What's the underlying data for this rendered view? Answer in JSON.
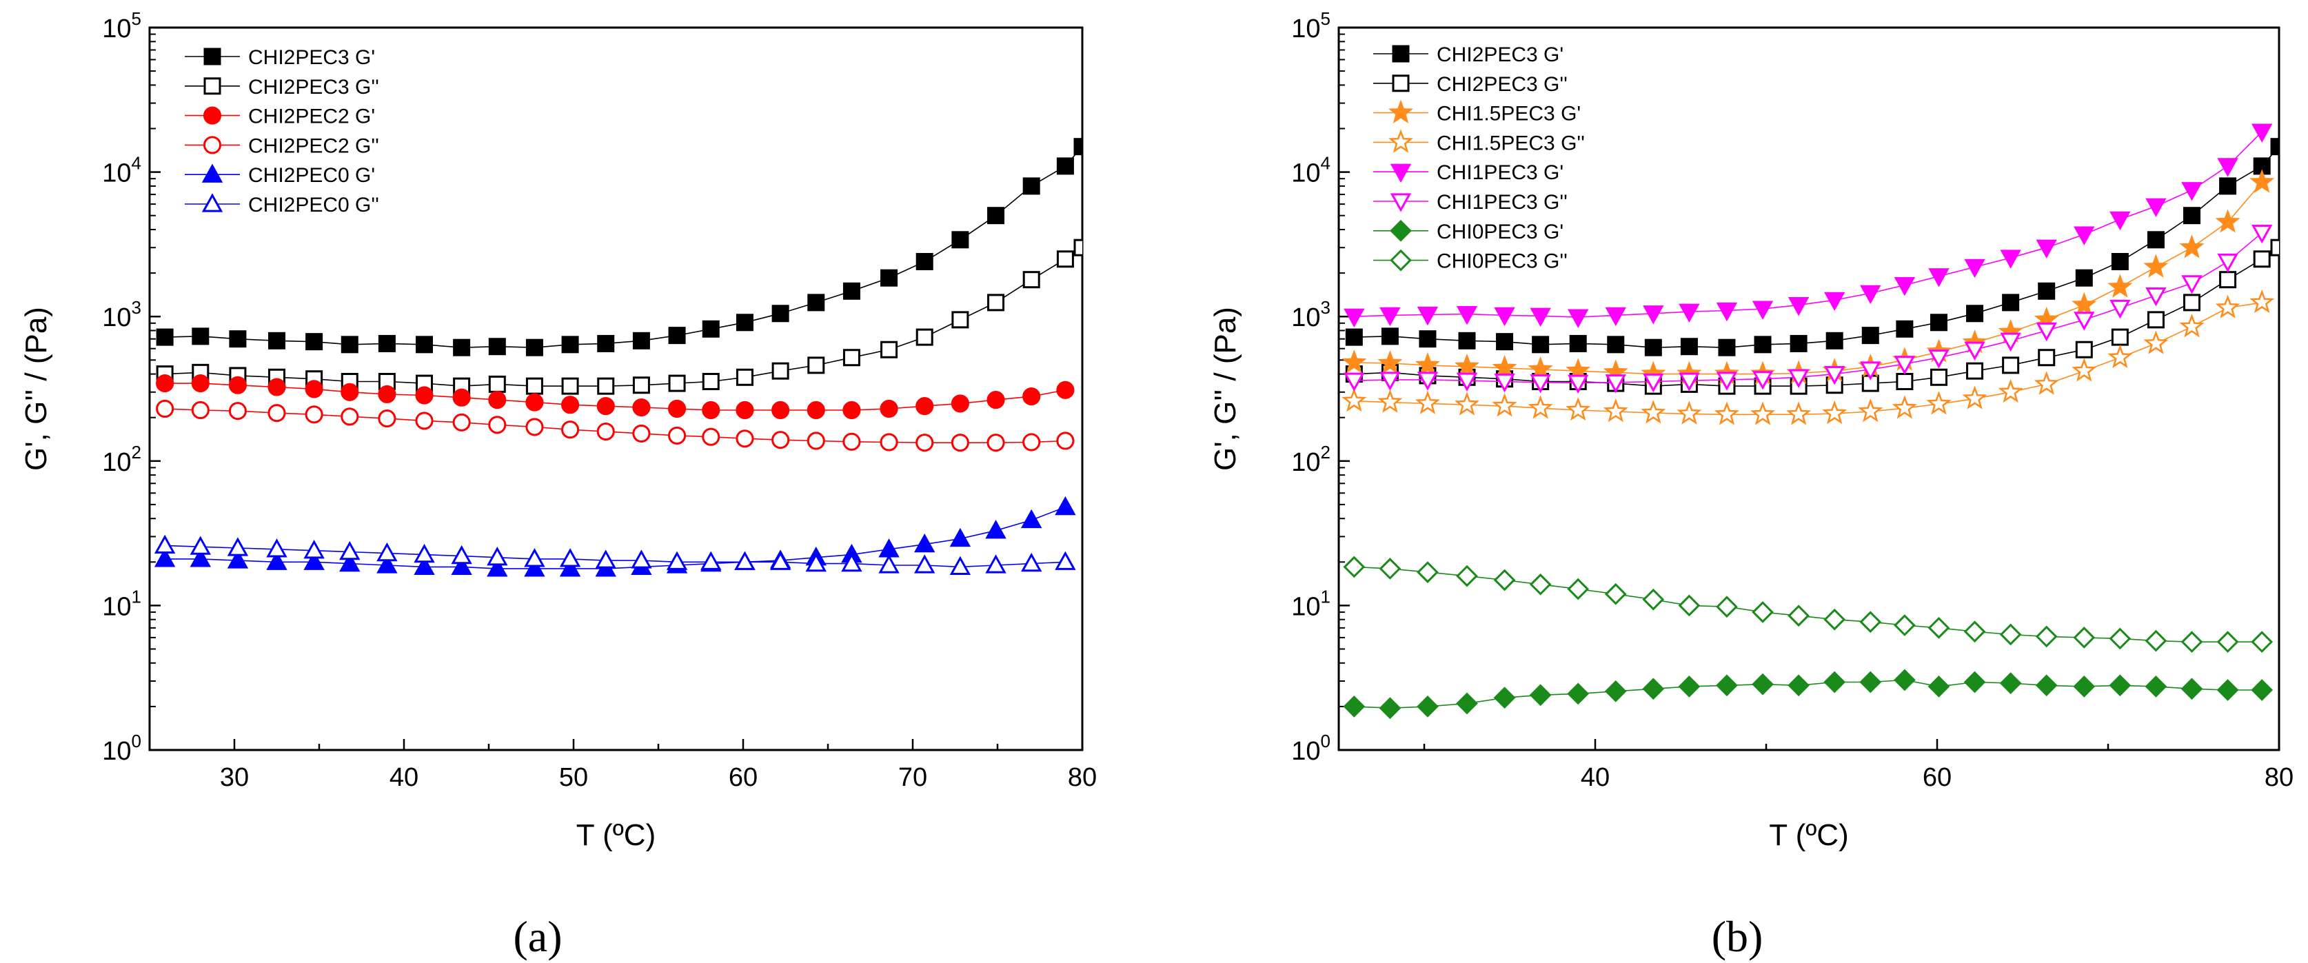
{
  "chart_data": [
    {
      "type": "scatter",
      "panel_label": "(a)",
      "xlabel": "T (ºC)",
      "ylabel": "G', G'' / (Pa)",
      "xlim": [
        25,
        80
      ],
      "ylim": [
        1,
        100000
      ],
      "yscale": "log",
      "x_ticks": [
        30,
        40,
        50,
        60,
        70,
        80
      ],
      "y_ticks": [
        "10^0",
        "10^1",
        "10^2",
        "10^3",
        "10^4",
        "10^5"
      ],
      "legend_position": "top-left",
      "grid": false,
      "series": [
        {
          "name": "CHI2PEC3 G'",
          "color": "#000000",
          "marker": "square",
          "filled": true,
          "x": [
            25.9,
            28,
            30.2,
            32.5,
            34.7,
            36.8,
            39,
            41.2,
            43.4,
            45.5,
            47.7,
            49.8,
            51.9,
            54,
            56.1,
            58.1,
            60.1,
            62.2,
            64.3,
            66.4,
            68.6,
            70.7,
            72.8,
            74.9,
            77,
            79,
            80
          ],
          "y": [
            720,
            730,
            700,
            680,
            670,
            640,
            650,
            640,
            610,
            620,
            610,
            640,
            650,
            680,
            740,
            820,
            910,
            1050,
            1250,
            1500,
            1850,
            2400,
            3400,
            5000,
            8000,
            11000,
            15000
          ]
        },
        {
          "name": "CHI2PEC3 G''",
          "color": "#000000",
          "marker": "square",
          "filled": false,
          "x": [
            25.9,
            28,
            30.2,
            32.5,
            34.7,
            36.8,
            39,
            41.2,
            43.4,
            45.5,
            47.7,
            49.8,
            51.9,
            54,
            56.1,
            58.1,
            60.1,
            62.2,
            64.3,
            66.4,
            68.6,
            70.7,
            72.8,
            74.9,
            77,
            79,
            80
          ],
          "y": [
            400,
            410,
            390,
            380,
            370,
            355,
            355,
            345,
            330,
            340,
            330,
            330,
            330,
            335,
            345,
            355,
            380,
            420,
            460,
            520,
            590,
            720,
            950,
            1250,
            1800,
            2500,
            3000
          ]
        },
        {
          "name": "CHI2PEC2 G'",
          "color": "#ff0000",
          "marker": "circle",
          "filled": true,
          "x": [
            25.9,
            28,
            30.2,
            32.5,
            34.7,
            36.8,
            39,
            41.2,
            43.4,
            45.5,
            47.7,
            49.8,
            51.9,
            54,
            56.1,
            58.1,
            60.1,
            62.2,
            64.3,
            66.4,
            68.6,
            70.7,
            72.8,
            74.9,
            77,
            79
          ],
          "y": [
            345,
            345,
            335,
            325,
            315,
            300,
            290,
            285,
            275,
            265,
            255,
            245,
            240,
            235,
            230,
            225,
            225,
            225,
            225,
            225,
            230,
            240,
            250,
            265,
            280,
            310
          ]
        },
        {
          "name": "CHI2PEC2 G''",
          "color": "#ff0000",
          "marker": "circle",
          "filled": false,
          "x": [
            25.9,
            28,
            30.2,
            32.5,
            34.7,
            36.8,
            39,
            41.2,
            43.4,
            45.5,
            47.7,
            49.8,
            51.9,
            54,
            56.1,
            58.1,
            60.1,
            62.2,
            64.3,
            66.4,
            68.6,
            70.7,
            72.8,
            74.9,
            77,
            79
          ],
          "y": [
            230,
            225,
            222,
            215,
            210,
            203,
            197,
            190,
            185,
            178,
            172,
            165,
            160,
            155,
            150,
            147,
            143,
            140,
            138,
            136,
            135,
            134,
            134,
            134,
            135,
            138
          ]
        },
        {
          "name": "CHI2PEC0 G'",
          "color": "#0000ff",
          "marker": "triangle-up",
          "filled": true,
          "x": [
            25.9,
            28,
            30.2,
            32.5,
            34.7,
            36.8,
            39,
            41.2,
            43.4,
            45.5,
            47.7,
            49.8,
            51.9,
            54,
            56.1,
            58.1,
            60.1,
            62.2,
            64.3,
            66.4,
            68.6,
            70.7,
            72.8,
            74.9,
            77,
            79
          ],
          "y": [
            21,
            21,
            20.5,
            20,
            20,
            19.5,
            19,
            18.5,
            18.5,
            18,
            18,
            18,
            18,
            18.5,
            19,
            19.5,
            20,
            20.5,
            21.5,
            22.5,
            24.5,
            26.5,
            29,
            33,
            39,
            48
          ]
        },
        {
          "name": "CHI2PEC0 G''",
          "color": "#0000ff",
          "marker": "triangle-up",
          "filled": false,
          "x": [
            25.9,
            28,
            30.2,
            32.5,
            34.7,
            36.8,
            39,
            41.2,
            43.4,
            45.5,
            47.7,
            49.8,
            51.9,
            54,
            56.1,
            58.1,
            60.1,
            62.2,
            64.3,
            66.4,
            68.6,
            70.7,
            72.8,
            74.9,
            77,
            79
          ],
          "y": [
            26,
            25.5,
            25,
            24.5,
            24,
            23.5,
            23,
            22.5,
            22,
            21.5,
            21,
            21,
            20.5,
            20.5,
            20,
            20,
            20,
            20,
            19.5,
            19.5,
            19,
            19,
            18.5,
            19,
            19.5,
            20
          ]
        }
      ]
    },
    {
      "type": "scatter",
      "panel_label": "(b)",
      "xlabel": "T (ºC)",
      "ylabel": "G', G'' / (Pa)",
      "xlim": [
        25,
        80
      ],
      "ylim": [
        1,
        100000
      ],
      "yscale": "log",
      "x_ticks": [
        40,
        60,
        80
      ],
      "y_ticks": [
        "10^0",
        "10^1",
        "10^2",
        "10^3",
        "10^4",
        "10^5"
      ],
      "legend_position": "top-left",
      "grid": false,
      "series": [
        {
          "name": "CHI2PEC3 G'",
          "color": "#000000",
          "marker": "square",
          "filled": true,
          "x": [
            25.9,
            28,
            30.2,
            32.5,
            34.7,
            36.8,
            39,
            41.2,
            43.4,
            45.5,
            47.7,
            49.8,
            51.9,
            54,
            56.1,
            58.1,
            60.1,
            62.2,
            64.3,
            66.4,
            68.6,
            70.7,
            72.8,
            74.9,
            77,
            79,
            80
          ],
          "y": [
            720,
            730,
            700,
            680,
            670,
            640,
            650,
            640,
            610,
            620,
            610,
            640,
            650,
            680,
            740,
            820,
            910,
            1050,
            1250,
            1500,
            1850,
            2400,
            3400,
            5000,
            8000,
            11000,
            15000
          ]
        },
        {
          "name": "CHI2PEC3 G''",
          "color": "#000000",
          "marker": "square",
          "filled": false,
          "x": [
            25.9,
            28,
            30.2,
            32.5,
            34.7,
            36.8,
            39,
            41.2,
            43.4,
            45.5,
            47.7,
            49.8,
            51.9,
            54,
            56.1,
            58.1,
            60.1,
            62.2,
            64.3,
            66.4,
            68.6,
            70.7,
            72.8,
            74.9,
            77,
            79,
            80
          ],
          "y": [
            400,
            410,
            390,
            380,
            370,
            355,
            355,
            345,
            330,
            340,
            330,
            330,
            330,
            335,
            345,
            355,
            380,
            420,
            460,
            520,
            590,
            720,
            950,
            1250,
            1800,
            2500,
            3000
          ]
        },
        {
          "name": "CHI1.5PEC3 G'",
          "color": "#ff8c1a",
          "marker": "star",
          "filled": true,
          "x": [
            25.9,
            28,
            30.2,
            32.5,
            34.7,
            36.8,
            39,
            41.2,
            43.4,
            45.5,
            47.7,
            49.8,
            51.9,
            54,
            56.1,
            58.1,
            60.1,
            62.2,
            64.3,
            66.4,
            68.6,
            70.7,
            72.8,
            74.9,
            77,
            79
          ],
          "y": [
            480,
            475,
            460,
            450,
            440,
            430,
            420,
            410,
            400,
            400,
            400,
            400,
            405,
            420,
            450,
            500,
            570,
            660,
            780,
            950,
            1200,
            1600,
            2200,
            3000,
            4500,
            8500
          ]
        },
        {
          "name": "CHI1.5PEC3 G''",
          "color": "#ff8c1a",
          "marker": "star",
          "filled": false,
          "x": [
            25.9,
            28,
            30.2,
            32.5,
            34.7,
            36.8,
            39,
            41.2,
            43.4,
            45.5,
            47.7,
            49.8,
            51.9,
            54,
            56.1,
            58.1,
            60.1,
            62.2,
            64.3,
            66.4,
            68.6,
            70.7,
            72.8,
            74.9,
            77,
            79
          ],
          "y": [
            260,
            255,
            250,
            245,
            240,
            232,
            225,
            220,
            215,
            212,
            210,
            210,
            210,
            213,
            220,
            232,
            248,
            270,
            300,
            340,
            420,
            520,
            650,
            850,
            1150,
            1250
          ]
        },
        {
          "name": "CHI1PEC3 G'",
          "color": "#ff00ff",
          "marker": "triangle-down",
          "filled": true,
          "x": [
            25.9,
            28,
            30.2,
            32.5,
            34.7,
            36.8,
            39,
            41.2,
            43.4,
            45.5,
            47.7,
            49.8,
            51.9,
            54,
            56.1,
            58.1,
            60.1,
            62.2,
            64.3,
            66.4,
            68.6,
            70.7,
            72.8,
            74.9,
            77,
            79
          ],
          "y": [
            1000,
            1020,
            1030,
            1040,
            1020,
            1010,
            990,
            1020,
            1050,
            1080,
            1100,
            1130,
            1200,
            1300,
            1450,
            1650,
            1900,
            2200,
            2550,
            3000,
            3700,
            4700,
            5800,
            7500,
            11000,
            19000
          ]
        },
        {
          "name": "CHI1PEC3 G''",
          "color": "#ff00ff",
          "marker": "triangle-down",
          "filled": false,
          "x": [
            25.9,
            28,
            30.2,
            32.5,
            34.7,
            36.8,
            39,
            41.2,
            43.4,
            45.5,
            47.7,
            49.8,
            51.9,
            54,
            56.1,
            58.1,
            60.1,
            62.2,
            64.3,
            66.4,
            68.6,
            70.7,
            72.8,
            74.9,
            77,
            79
          ],
          "y": [
            360,
            365,
            365,
            360,
            355,
            350,
            348,
            350,
            355,
            360,
            365,
            370,
            380,
            400,
            430,
            470,
            520,
            590,
            680,
            800,
            950,
            1150,
            1400,
            1700,
            2400,
            3800
          ]
        },
        {
          "name": "CHI0PEC3 G'",
          "color": "#1a8a1a",
          "marker": "diamond",
          "filled": true,
          "x": [
            25.9,
            28,
            30.2,
            32.5,
            34.7,
            36.8,
            39,
            41.2,
            43.4,
            45.5,
            47.7,
            49.8,
            51.9,
            54,
            56.1,
            58.1,
            60.1,
            62.2,
            64.3,
            66.4,
            68.6,
            70.7,
            72.8,
            74.9,
            77,
            79
          ],
          "y": [
            2.0,
            1.95,
            2.0,
            2.1,
            2.3,
            2.4,
            2.45,
            2.55,
            2.65,
            2.75,
            2.8,
            2.85,
            2.8,
            2.95,
            2.95,
            3.05,
            2.75,
            2.95,
            2.9,
            2.8,
            2.75,
            2.8,
            2.75,
            2.65,
            2.6,
            2.6
          ]
        },
        {
          "name": "CHI0PEC3 G''",
          "color": "#1a8a1a",
          "marker": "diamond",
          "filled": false,
          "x": [
            25.9,
            28,
            30.2,
            32.5,
            34.7,
            36.8,
            39,
            41.2,
            43.4,
            45.5,
            47.7,
            49.8,
            51.9,
            54,
            56.1,
            58.1,
            60.1,
            62.2,
            64.3,
            66.4,
            68.6,
            70.7,
            72.8,
            74.9,
            77,
            79
          ],
          "y": [
            18.5,
            18,
            17,
            16,
            15,
            14,
            13,
            12,
            11,
            10,
            9.8,
            9,
            8.5,
            8,
            7.7,
            7.3,
            7,
            6.6,
            6.3,
            6.1,
            6.0,
            5.9,
            5.7,
            5.6,
            5.6,
            5.6
          ]
        }
      ]
    }
  ]
}
